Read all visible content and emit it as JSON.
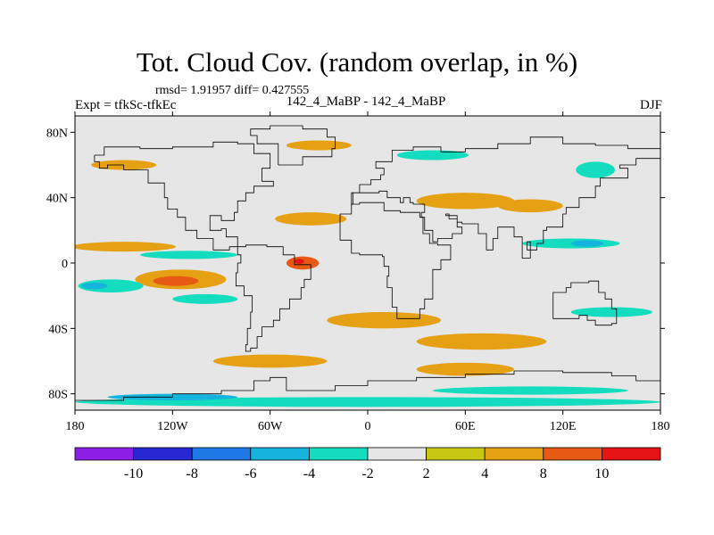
{
  "title": "Tot. Cloud Cov. (random overlap, in %)",
  "stats": "rmsd= 1.91957 diff= 0.427555",
  "experiment": "Expt = tfkSc-tfkEc",
  "period": "142_4_MaBP - 142_4_MaBP",
  "season": "DJF",
  "map": {
    "type": "heatmap",
    "projection": "cylindrical-equidistant",
    "lon_range": [
      -180,
      180
    ],
    "lat_range": [
      -90,
      90
    ],
    "x_ticks": [
      {
        "value": -180,
        "label": "180"
      },
      {
        "value": -120,
        "label": "120W"
      },
      {
        "value": -60,
        "label": "60W"
      },
      {
        "value": 0,
        "label": "0"
      },
      {
        "value": 60,
        "label": "60E"
      },
      {
        "value": 120,
        "label": "120E"
      },
      {
        "value": 180,
        "label": "180"
      }
    ],
    "y_ticks": [
      {
        "value": 80,
        "label": "80N"
      },
      {
        "value": 40,
        "label": "40N"
      },
      {
        "value": 0,
        "label": "0"
      },
      {
        "value": -40,
        "label": "40S"
      },
      {
        "value": -80,
        "label": "80S"
      }
    ],
    "background_color": "#e6e6e6"
  },
  "colorbar": {
    "levels": [
      -10,
      -8,
      -6,
      -4,
      -2,
      2,
      4,
      8,
      10
    ],
    "level_labels": [
      "-10",
      "-8",
      "-6",
      "-4",
      "-2",
      "2",
      "4",
      "8",
      "10"
    ],
    "colors": [
      "#8c1ee6",
      "#2828d2",
      "#1e78e6",
      "#14b4dc",
      "#14dcbe",
      "#e6e6e6",
      "#c8c814",
      "#e6a014",
      "#e65a14",
      "#e61414"
    ]
  },
  "anomaly_regions": [
    {
      "name": "equatorial-east-pacific-positive",
      "lon": -115,
      "lat": -10,
      "rx": 28,
      "ry": 6,
      "level": 4
    },
    {
      "name": "east-pacific-core-positive",
      "lon": -118,
      "lat": -11,
      "rx": 14,
      "ry": 3,
      "level": 8
    },
    {
      "name": "south-america-west-positive",
      "lon": -40,
      "lat": 0,
      "rx": 10,
      "ry": 4,
      "level": 8
    },
    {
      "name": "south-america-west-max",
      "lon": -42,
      "lat": 1,
      "rx": 3,
      "ry": 1.5,
      "level": 10
    },
    {
      "name": "north-pacific-band",
      "lon": -150,
      "lat": 10,
      "rx": 32,
      "ry": 3,
      "level": 4
    },
    {
      "name": "central-pacific-negative",
      "lon": -158,
      "lat": -14,
      "rx": 20,
      "ry": 4,
      "level": -4
    },
    {
      "name": "pacific-itcz-negative",
      "lon": -110,
      "lat": 5,
      "rx": 30,
      "ry": 2.5,
      "level": -4
    },
    {
      "name": "pacific-negative-core",
      "lon": -168,
      "lat": -14,
      "rx": 8,
      "ry": 2,
      "level": -6
    },
    {
      "name": "south-pacific-negative",
      "lon": -100,
      "lat": -22,
      "rx": 20,
      "ry": 3,
      "level": -4
    },
    {
      "name": "atlantic-midlat-positive",
      "lon": -35,
      "lat": 27,
      "rx": 22,
      "ry": 4,
      "level": 4
    },
    {
      "name": "europe-positive",
      "lon": 60,
      "lat": 38,
      "rx": 30,
      "ry": 5,
      "level": 4
    },
    {
      "name": "siberia-positive",
      "lon": 100,
      "lat": 35,
      "rx": 20,
      "ry": 4,
      "level": 4
    },
    {
      "name": "arctic-negative",
      "lon": 40,
      "lat": 66,
      "rx": 22,
      "ry": 3,
      "level": -4
    },
    {
      "name": "far-east-minimum",
      "lon": 143,
      "lat": 57,
      "rx": 8,
      "ry": 4,
      "level": -8
    },
    {
      "name": "far-east-negative",
      "lon": 140,
      "lat": 57,
      "rx": 12,
      "ry": 5,
      "level": -4
    },
    {
      "name": "indian-ocean-negative",
      "lon": 125,
      "lat": 12,
      "rx": 30,
      "ry": 3,
      "level": -4
    },
    {
      "name": "indian-ocean-core-negative",
      "lon": 135,
      "lat": 12,
      "rx": 10,
      "ry": 2,
      "level": -6
    },
    {
      "name": "africa-positive",
      "lon": 10,
      "lat": -35,
      "rx": 35,
      "ry": 5,
      "level": 4
    },
    {
      "name": "south-atlantic-positive",
      "lon": 70,
      "lat": -48,
      "rx": 40,
      "ry": 5,
      "level": 4
    },
    {
      "name": "southern-ocean-positive",
      "lon": -60,
      "lat": -60,
      "rx": 35,
      "ry": 4,
      "level": 4
    },
    {
      "name": "south-indian-positive",
      "lon": 60,
      "lat": -65,
      "rx": 30,
      "ry": 4,
      "level": 4
    },
    {
      "name": "southern-negative-band",
      "lon": 100,
      "lat": -78,
      "rx": 60,
      "ry": 2.5,
      "level": -4
    },
    {
      "name": "antarctic-negative-band",
      "lon": 0,
      "lat": -85,
      "rx": 180,
      "ry": 3,
      "level": -4
    },
    {
      "name": "antarctic-west-negative",
      "lon": -120,
      "lat": -82,
      "rx": 40,
      "ry": 2,
      "level": -6
    },
    {
      "name": "east-pacific-negative-south",
      "lon": 150,
      "lat": -30,
      "rx": 25,
      "ry": 3,
      "level": -4
    },
    {
      "name": "arctic-positive-west",
      "lon": -150,
      "lat": 60,
      "rx": 20,
      "ry": 3,
      "level": 4
    },
    {
      "name": "north-america-positive",
      "lon": -30,
      "lat": 72,
      "rx": 20,
      "ry": 3,
      "level": 4
    }
  ],
  "coastlines": [
    {
      "name": "north-america",
      "points": [
        [
          -168,
          66
        ],
        [
          -162,
          71
        ],
        [
          -140,
          70
        ],
        [
          -120,
          71
        ],
        [
          -95,
          74
        ],
        [
          -80,
          73
        ],
        [
          -70,
          67
        ],
        [
          -60,
          58
        ],
        [
          -65,
          50
        ],
        [
          -58,
          47
        ],
        [
          -70,
          43
        ],
        [
          -75,
          38
        ],
        [
          -80,
          31
        ],
        [
          -82,
          26
        ],
        [
          -90,
          29
        ],
        [
          -97,
          26
        ],
        [
          -97,
          20
        ],
        [
          -90,
          21
        ],
        [
          -87,
          16
        ],
        [
          -80,
          10
        ],
        [
          -85,
          8
        ],
        [
          -95,
          15
        ],
        [
          -105,
          20
        ],
        [
          -112,
          28
        ],
        [
          -117,
          33
        ],
        [
          -123,
          40
        ],
        [
          -125,
          49
        ],
        [
          -135,
          57
        ],
        [
          -150,
          60
        ],
        [
          -160,
          58
        ],
        [
          -165,
          62
        ],
        [
          -168,
          66
        ]
      ]
    },
    {
      "name": "south-america",
      "points": [
        [
          -80,
          10
        ],
        [
          -75,
          11
        ],
        [
          -62,
          10
        ],
        [
          -52,
          5
        ],
        [
          -45,
          -1
        ],
        [
          -35,
          -5
        ],
        [
          -35,
          -10
        ],
        [
          -39,
          -15
        ],
        [
          -41,
          -22
        ],
        [
          -48,
          -28
        ],
        [
          -54,
          -35
        ],
        [
          -58,
          -39
        ],
        [
          -65,
          -45
        ],
        [
          -68,
          -52
        ],
        [
          -72,
          -54
        ],
        [
          -75,
          -50
        ],
        [
          -74,
          -40
        ],
        [
          -72,
          -30
        ],
        [
          -71,
          -20
        ],
        [
          -76,
          -14
        ],
        [
          -81,
          -6
        ],
        [
          -80,
          0
        ],
        [
          -78,
          5
        ],
        [
          -80,
          10
        ]
      ]
    },
    {
      "name": "greenland",
      "points": [
        [
          -55,
          60
        ],
        [
          -45,
          60
        ],
        [
          -40,
          65
        ],
        [
          -22,
          70
        ],
        [
          -20,
          77
        ],
        [
          -25,
          82
        ],
        [
          -40,
          84
        ],
        [
          -60,
          82
        ],
        [
          -72,
          78
        ],
        [
          -68,
          73
        ],
        [
          -55,
          68
        ],
        [
          -55,
          60
        ]
      ]
    },
    {
      "name": "eurasia",
      "points": [
        [
          -10,
          36
        ],
        [
          -9,
          43
        ],
        [
          -2,
          43
        ],
        [
          -5,
          48
        ],
        [
          2,
          51
        ],
        [
          8,
          54
        ],
        [
          10,
          58
        ],
        [
          5,
          62
        ],
        [
          15,
          69
        ],
        [
          28,
          71
        ],
        [
          45,
          68
        ],
        [
          60,
          70
        ],
        [
          80,
          73
        ],
        [
          100,
          77
        ],
        [
          120,
          73
        ],
        [
          140,
          72
        ],
        [
          160,
          70
        ],
        [
          180,
          68
        ],
        [
          180,
          64
        ],
        [
          165,
          60
        ],
        [
          155,
          58
        ],
        [
          160,
          52
        ],
        [
          143,
          47
        ],
        [
          140,
          40
        ],
        [
          130,
          34
        ],
        [
          122,
          30
        ],
        [
          120,
          22
        ],
        [
          110,
          20
        ],
        [
          108,
          12
        ],
        [
          104,
          8
        ],
        [
          100,
          13
        ],
        [
          98,
          8
        ],
        [
          100,
          3
        ],
        [
          95,
          16
        ],
        [
          90,
          22
        ],
        [
          80,
          15
        ],
        [
          77,
          8
        ],
        [
          73,
          18
        ],
        [
          68,
          24
        ],
        [
          58,
          25
        ],
        [
          55,
          27
        ],
        [
          50,
          30
        ],
        [
          48,
          29
        ],
        [
          55,
          22
        ],
        [
          58,
          18
        ],
        [
          52,
          15
        ],
        [
          43,
          13
        ],
        [
          40,
          20
        ],
        [
          35,
          28
        ],
        [
          33,
          31
        ],
        [
          35,
          36
        ],
        [
          28,
          37
        ],
        [
          26,
          40
        ],
        [
          22,
          37
        ],
        [
          20,
          40
        ],
        [
          14,
          40
        ],
        [
          12,
          44
        ],
        [
          7,
          43
        ],
        [
          3,
          43
        ],
        [
          -10,
          36
        ]
      ]
    },
    {
      "name": "africa",
      "points": [
        [
          -17,
          21
        ],
        [
          -17,
          14
        ],
        [
          -10,
          6
        ],
        [
          -5,
          5
        ],
        [
          5,
          5
        ],
        [
          9,
          4
        ],
        [
          10,
          -2
        ],
        [
          13,
          -8
        ],
        [
          12,
          -15
        ],
        [
          15,
          -27
        ],
        [
          18,
          -34
        ],
        [
          25,
          -34
        ],
        [
          32,
          -28
        ],
        [
          35,
          -22
        ],
        [
          40,
          -15
        ],
        [
          40,
          -4
        ],
        [
          45,
          2
        ],
        [
          51,
          11
        ],
        [
          43,
          12
        ],
        [
          38,
          18
        ],
        [
          34,
          28
        ],
        [
          32,
          31
        ],
        [
          20,
          32
        ],
        [
          10,
          37
        ],
        [
          -5,
          36
        ],
        [
          -10,
          30
        ],
        [
          -17,
          21
        ]
      ]
    },
    {
      "name": "australia",
      "points": [
        [
          114,
          -22
        ],
        [
          114,
          -34
        ],
        [
          120,
          -34
        ],
        [
          130,
          -32
        ],
        [
          135,
          -35
        ],
        [
          140,
          -38
        ],
        [
          150,
          -37
        ],
        [
          153,
          -28
        ],
        [
          150,
          -22
        ],
        [
          146,
          -18
        ],
        [
          142,
          -11
        ],
        [
          136,
          -12
        ],
        [
          130,
          -12
        ],
        [
          125,
          -15
        ],
        [
          122,
          -18
        ],
        [
          114,
          -22
        ]
      ]
    },
    {
      "name": "antarctica",
      "points": [
        [
          -180,
          -84
        ],
        [
          -150,
          -82
        ],
        [
          -120,
          -80
        ],
        [
          -90,
          -78
        ],
        [
          -70,
          -72
        ],
        [
          -60,
          -70
        ],
        [
          -50,
          -78
        ],
        [
          -20,
          -75
        ],
        [
          0,
          -72
        ],
        [
          30,
          -70
        ],
        [
          60,
          -68
        ],
        [
          90,
          -66
        ],
        [
          120,
          -67
        ],
        [
          150,
          -69
        ],
        [
          165,
          -72
        ],
        [
          180,
          -78
        ]
      ]
    }
  ]
}
